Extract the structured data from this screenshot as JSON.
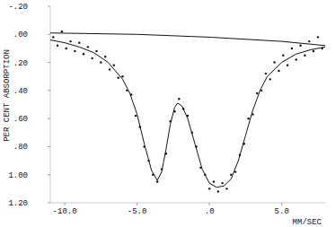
{
  "chart_data": {
    "type": "scatter",
    "y_label": "PER CENT ABSORPTION",
    "x_label": "MM/SEC",
    "xlim": [
      -11,
      8
    ],
    "ylim": [
      1.2,
      -0.2
    ],
    "xticks": [
      {
        "value": -10,
        "label": "-10.0"
      },
      {
        "value": -5,
        "label": "-5.0"
      },
      {
        "value": 0,
        "label": ".0"
      },
      {
        "value": 5,
        "label": "5.0"
      }
    ],
    "yticks": [
      {
        "value": -0.2,
        "label": "-.20"
      },
      {
        "value": 0,
        "label": ".00"
      },
      {
        "value": 0.2,
        "label": ".20"
      },
      {
        "value": 0.4,
        "label": ".40"
      },
      {
        "value": 0.6,
        "label": ".60"
      },
      {
        "value": 0.8,
        "label": ".80"
      },
      {
        "value": 1.0,
        "label": "1.00"
      },
      {
        "value": 1.2,
        "label": "1.20"
      }
    ],
    "grid": false,
    "series": [
      {
        "type": "scatter",
        "color": "#111111",
        "marker": "dot",
        "x": [
          -10.8,
          -10.5,
          -10.2,
          -9.9,
          -9.6,
          -9.3,
          -9.0,
          -8.7,
          -8.4,
          -8.1,
          -7.8,
          -7.5,
          -7.2,
          -6.9,
          -6.6,
          -6.3,
          -6.0,
          -5.7,
          -5.4,
          -5.1,
          -4.8,
          -4.5,
          -4.2,
          -3.9,
          -3.6,
          -3.3,
          -3.0,
          -2.7,
          -2.4,
          -2.1,
          -1.8,
          -1.5,
          -1.2,
          -0.9,
          -0.6,
          -0.3,
          0.0,
          0.3,
          0.6,
          0.9,
          1.2,
          1.5,
          1.8,
          2.1,
          2.4,
          2.7,
          3.0,
          3.3,
          3.6,
          3.9,
          4.2,
          4.5,
          4.8,
          5.1,
          5.4,
          5.7,
          6.0,
          6.3,
          6.6,
          6.9,
          7.2,
          7.5,
          7.8
        ],
        "values": [
          0.02,
          0.08,
          -0.02,
          0.1,
          0.05,
          0.12,
          0.06,
          0.14,
          0.09,
          0.17,
          0.12,
          0.2,
          0.16,
          0.25,
          0.22,
          0.31,
          0.3,
          0.4,
          0.43,
          0.58,
          0.66,
          0.8,
          0.9,
          1.0,
          1.05,
          0.96,
          0.85,
          0.62,
          0.55,
          0.46,
          0.53,
          0.58,
          0.7,
          0.8,
          0.95,
          1.0,
          1.1,
          1.05,
          1.12,
          1.06,
          1.1,
          1.0,
          0.98,
          0.86,
          0.78,
          0.6,
          0.57,
          0.42,
          0.4,
          0.28,
          0.32,
          0.2,
          0.26,
          0.15,
          0.22,
          0.1,
          0.18,
          0.08,
          0.15,
          0.05,
          0.12,
          0.02,
          0.1
        ]
      },
      {
        "type": "line",
        "color": "#111111",
        "line_style": "solid",
        "x": [
          -11,
          -10,
          -9,
          -8,
          -7,
          -6,
          -5.5,
          -5,
          -4.5,
          -4,
          -3.6,
          -3.3,
          -3,
          -2.7,
          -2.4,
          -2.2,
          -1.9,
          -1.5,
          -1,
          -0.5,
          0,
          0.5,
          1,
          1.5,
          2,
          2.5,
          3,
          3.5,
          4,
          5,
          6,
          7,
          8
        ],
        "values": [
          0.04,
          0.06,
          0.09,
          0.13,
          0.2,
          0.32,
          0.42,
          0.57,
          0.78,
          0.97,
          1.04,
          0.98,
          0.82,
          0.64,
          0.52,
          0.49,
          0.51,
          0.6,
          0.78,
          0.96,
          1.06,
          1.09,
          1.08,
          1.03,
          0.9,
          0.72,
          0.54,
          0.4,
          0.3,
          0.2,
          0.14,
          0.11,
          0.09
        ]
      },
      {
        "type": "line",
        "color": "#111111",
        "line_style": "solid",
        "x": [
          -11,
          -5,
          0,
          5,
          8
        ],
        "values": [
          -0.01,
          0.0,
          0.02,
          0.05,
          0.08
        ]
      }
    ]
  }
}
